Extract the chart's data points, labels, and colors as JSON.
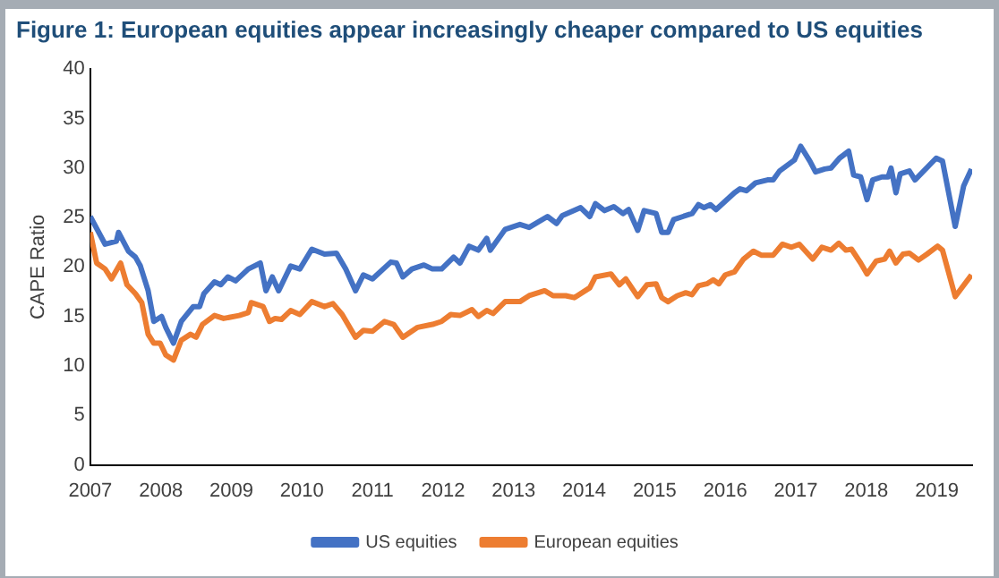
{
  "chart_data": {
    "type": "line",
    "title": "Figure 1: European equities appear increasingly cheaper compared to US equities",
    "ylabel": "CAPE Ratio",
    "xlim": [
      2007,
      2019.5
    ],
    "xticks": [
      2007,
      2008,
      2009,
      2010,
      2011,
      2012,
      2013,
      2014,
      2015,
      2016,
      2017,
      2018,
      2019
    ],
    "ylim": [
      0,
      40
    ],
    "yticks": [
      0,
      5,
      10,
      15,
      20,
      25,
      30,
      35,
      40
    ],
    "grid": false,
    "legend": "bottom",
    "marker": "none",
    "line_style": "solid",
    "series": [
      {
        "name": "US equities",
        "color": "#4472c4",
        "x": [
          2007.0,
          2007.21,
          2007.37,
          2007.4,
          2007.54,
          2007.64,
          2007.71,
          2007.82,
          2007.9,
          2008.01,
          2008.07,
          2008.18,
          2008.29,
          2008.46,
          2008.55,
          2008.61,
          2008.76,
          2008.85,
          2008.95,
          2009.06,
          2009.24,
          2009.41,
          2009.49,
          2009.58,
          2009.67,
          2009.84,
          2009.97,
          2010.14,
          2010.32,
          2010.49,
          2010.62,
          2010.76,
          2010.87,
          2011.0,
          2011.26,
          2011.34,
          2011.43,
          2011.56,
          2011.73,
          2011.85,
          2011.98,
          2012.15,
          2012.24,
          2012.37,
          2012.5,
          2012.62,
          2012.67,
          2012.88,
          2013.09,
          2013.22,
          2013.48,
          2013.61,
          2013.69,
          2013.95,
          2014.08,
          2014.16,
          2014.29,
          2014.42,
          2014.55,
          2014.63,
          2014.76,
          2014.85,
          2015.02,
          2015.1,
          2015.19,
          2015.27,
          2015.4,
          2015.53,
          2015.62,
          2015.7,
          2015.79,
          2015.87,
          2016.13,
          2016.21,
          2016.3,
          2016.43,
          2016.6,
          2016.68,
          2016.77,
          2016.98,
          2017.07,
          2017.2,
          2017.28,
          2017.41,
          2017.5,
          2017.62,
          2017.75,
          2017.82,
          2017.92,
          2018.01,
          2018.09,
          2018.22,
          2018.31,
          2018.35,
          2018.42,
          2018.48,
          2018.61,
          2018.69,
          2018.99,
          2019.08,
          2019.26,
          2019.38,
          2019.49
        ],
        "values": [
          25.1,
          22.3,
          22.6,
          23.5,
          21.6,
          21.0,
          20.1,
          17.6,
          14.5,
          15.0,
          13.9,
          12.3,
          14.5,
          16.0,
          16.0,
          17.3,
          18.5,
          18.2,
          19.0,
          18.6,
          19.8,
          20.4,
          17.6,
          19.0,
          17.6,
          20.1,
          19.8,
          21.8,
          21.3,
          21.4,
          19.8,
          17.6,
          19.2,
          18.8,
          20.5,
          20.4,
          19.0,
          19.8,
          20.2,
          19.8,
          19.8,
          21.0,
          20.4,
          22.1,
          21.7,
          22.9,
          21.7,
          23.8,
          24.3,
          24.0,
          25.1,
          24.4,
          25.2,
          26.0,
          25.1,
          26.4,
          25.7,
          26.1,
          25.4,
          25.8,
          23.7,
          25.7,
          25.4,
          23.5,
          23.5,
          24.8,
          25.1,
          25.4,
          26.3,
          26.0,
          26.3,
          25.8,
          27.5,
          27.9,
          27.7,
          28.5,
          28.8,
          28.8,
          29.7,
          30.8,
          32.2,
          30.7,
          29.6,
          29.9,
          30.0,
          31.0,
          31.7,
          29.3,
          29.1,
          26.8,
          28.8,
          29.1,
          29.1,
          30.0,
          27.5,
          29.4,
          29.7,
          28.8,
          31.0,
          30.7,
          24.1,
          28.2,
          29.9
        ]
      },
      {
        "name": "European equities",
        "color": "#ed7d31",
        "x": [
          2007.0,
          2007.09,
          2007.21,
          2007.3,
          2007.43,
          2007.52,
          2007.64,
          2007.73,
          2007.82,
          2007.9,
          2007.99,
          2008.07,
          2008.18,
          2008.29,
          2008.42,
          2008.5,
          2008.59,
          2008.76,
          2008.89,
          2009.11,
          2009.24,
          2009.28,
          2009.45,
          2009.54,
          2009.62,
          2009.71,
          2009.84,
          2009.97,
          2010.14,
          2010.32,
          2010.44,
          2010.57,
          2010.76,
          2010.87,
          2011.0,
          2011.17,
          2011.3,
          2011.43,
          2011.64,
          2011.85,
          2011.98,
          2012.11,
          2012.24,
          2012.41,
          2012.5,
          2012.62,
          2012.71,
          2012.88,
          2013.09,
          2013.22,
          2013.44,
          2013.56,
          2013.74,
          2013.86,
          2014.08,
          2014.16,
          2014.38,
          2014.5,
          2014.59,
          2014.76,
          2014.89,
          2015.02,
          2015.1,
          2015.19,
          2015.32,
          2015.44,
          2015.53,
          2015.62,
          2015.74,
          2015.83,
          2015.91,
          2016.0,
          2016.13,
          2016.26,
          2016.4,
          2016.51,
          2016.68,
          2016.81,
          2016.94,
          2017.05,
          2017.24,
          2017.37,
          2017.5,
          2017.61,
          2017.71,
          2017.79,
          2017.92,
          2018.01,
          2018.14,
          2018.26,
          2018.33,
          2018.42,
          2018.52,
          2018.61,
          2018.74,
          2018.86,
          2019.01,
          2019.08,
          2019.26,
          2019.49
        ],
        "values": [
          23.5,
          20.4,
          19.8,
          18.8,
          20.4,
          18.2,
          17.3,
          16.4,
          13.2,
          12.3,
          12.3,
          11.1,
          10.6,
          12.6,
          13.2,
          12.9,
          14.2,
          15.1,
          14.8,
          15.1,
          15.4,
          16.4,
          16.0,
          14.5,
          14.8,
          14.7,
          15.6,
          15.2,
          16.5,
          16.0,
          16.3,
          15.2,
          12.9,
          13.6,
          13.5,
          14.5,
          14.2,
          12.9,
          13.9,
          14.2,
          14.5,
          15.2,
          15.1,
          15.7,
          15.0,
          15.6,
          15.3,
          16.5,
          16.5,
          17.1,
          17.6,
          17.1,
          17.1,
          16.9,
          17.9,
          19.0,
          19.3,
          18.2,
          18.8,
          17.0,
          18.2,
          18.3,
          16.9,
          16.5,
          17.1,
          17.4,
          17.2,
          18.1,
          18.3,
          18.7,
          18.3,
          19.2,
          19.5,
          20.8,
          21.6,
          21.2,
          21.2,
          22.3,
          22.0,
          22.3,
          20.8,
          22.0,
          21.7,
          22.4,
          21.7,
          21.8,
          20.4,
          19.3,
          20.6,
          20.8,
          21.6,
          20.4,
          21.3,
          21.4,
          20.7,
          21.3,
          22.1,
          21.7,
          17.0,
          19.2
        ]
      }
    ]
  }
}
